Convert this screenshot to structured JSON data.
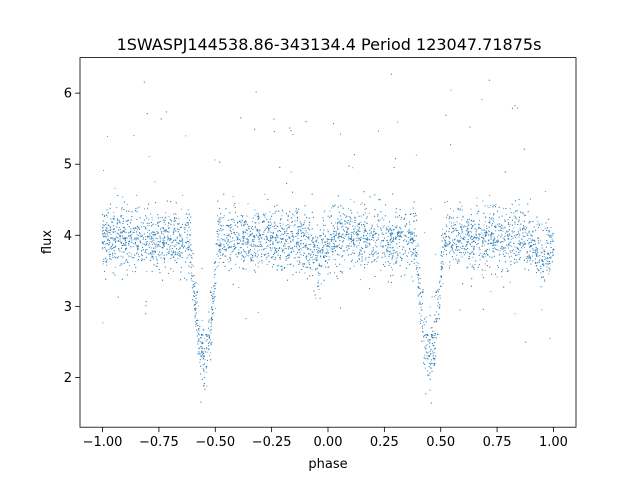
{
  "chart_data": {
    "type": "scatter",
    "title": "1SWASPJ144538.86-343134.4 Period 123047.71875s",
    "xlabel": "phase",
    "ylabel": "flux",
    "xlim": [
      -1.1,
      1.1
    ],
    "ylim": [
      1.3,
      6.5
    ],
    "grid": false,
    "legend": "none",
    "point_color": "#1f77b4",
    "x_ticks": [
      {
        "value": -1.0,
        "label": "−1.00"
      },
      {
        "value": -0.75,
        "label": "−0.75"
      },
      {
        "value": -0.5,
        "label": "−0.50"
      },
      {
        "value": -0.25,
        "label": "−0.25"
      },
      {
        "value": 0.0,
        "label": "0.00"
      },
      {
        "value": 0.25,
        "label": "0.25"
      },
      {
        "value": 0.5,
        "label": "0.50"
      },
      {
        "value": 0.75,
        "label": "0.75"
      },
      {
        "value": 1.0,
        "label": "1.00"
      }
    ],
    "y_ticks": [
      {
        "value": 2,
        "label": "2"
      },
      {
        "value": 3,
        "label": "3"
      },
      {
        "value": 4,
        "label": "4"
      },
      {
        "value": 5,
        "label": "5"
      },
      {
        "value": 6,
        "label": "6"
      }
    ],
    "phase_range": [
      -1.0,
      1.0
    ],
    "baseline_flux": 3.95,
    "scatter_sd": 0.22,
    "primary_eclipse": {
      "phases": [
        -0.55,
        0.45
      ],
      "min_flux": 2.3,
      "half_width": 0.06
    },
    "secondary_eclipse": {
      "phases": [
        -0.05,
        0.95
      ],
      "min_flux": 3.65,
      "half_width": 0.06
    },
    "series": [
      {
        "name": "",
        "x": [
          -1.0,
          -0.9,
          -0.8,
          -0.7,
          -0.62,
          -0.58,
          -0.56,
          -0.55,
          -0.54,
          -0.52,
          -0.48,
          -0.4,
          -0.3,
          -0.2,
          -0.1,
          -0.05,
          0.0,
          0.1,
          0.2,
          0.3,
          0.38,
          0.42,
          0.44,
          0.45,
          0.46,
          0.48,
          0.52,
          0.6,
          0.7,
          0.8,
          0.9,
          0.95,
          1.0
        ],
        "y": [
          3.9,
          3.95,
          3.98,
          3.95,
          3.8,
          3.2,
          2.6,
          2.3,
          2.6,
          3.2,
          3.85,
          3.95,
          4.0,
          3.95,
          3.85,
          3.65,
          3.85,
          3.95,
          4.0,
          3.95,
          3.8,
          3.2,
          2.6,
          2.3,
          2.6,
          3.2,
          3.85,
          3.95,
          4.0,
          3.95,
          3.85,
          3.65,
          3.8
        ]
      }
    ]
  }
}
